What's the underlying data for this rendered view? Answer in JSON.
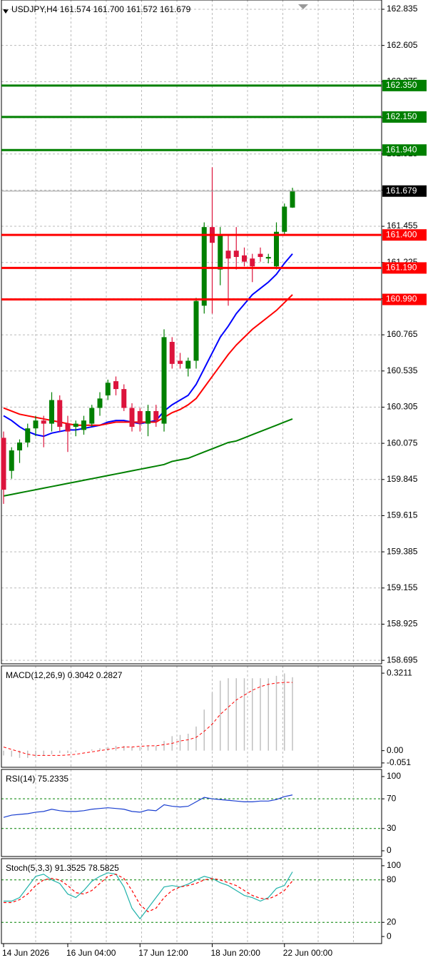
{
  "chart_data": [
    {
      "type": "candlestick",
      "title": "USDJPY,H4  161.574 161.700 161.572 161.679",
      "categories": [
        "14 Jun 2026",
        null,
        null,
        null,
        null,
        null,
        null,
        null,
        "16 Jun 04:00",
        null,
        null,
        null,
        null,
        null,
        null,
        null,
        null,
        "17 Jun 12:00",
        null,
        null,
        null,
        null,
        null,
        null,
        null,
        null,
        "18 Jun 20:00",
        null,
        null,
        null,
        null,
        null,
        null,
        null,
        null,
        "22 Jun 00:00",
        null
      ],
      "open": [
        160.11,
        159.9,
        160.03,
        160.08,
        160.17,
        160.22,
        160.2,
        160.35,
        160.2,
        160.18,
        160.16,
        160.2,
        160.3,
        160.38,
        160.47,
        160.42,
        160.3,
        160.28,
        160.2,
        160.28,
        160.2,
        160.72,
        160.6,
        160.55,
        160.6,
        160.95,
        161.45,
        161.18,
        161.3,
        161.3,
        161.27,
        161.25,
        161.28,
        161.25,
        161.2,
        161.42,
        161.574
      ],
      "high": [
        160.15,
        160.05,
        160.1,
        160.2,
        160.25,
        160.25,
        160.4,
        160.38,
        160.25,
        160.22,
        160.25,
        160.32,
        160.4,
        160.48,
        160.5,
        160.45,
        160.33,
        160.3,
        160.32,
        160.32,
        160.8,
        160.75,
        160.65,
        160.62,
        161.0,
        161.48,
        161.83,
        161.45,
        161.4,
        161.45,
        161.32,
        161.28,
        161.32,
        161.28,
        161.48,
        161.6,
        161.7
      ],
      "low": [
        159.69,
        159.85,
        159.95,
        160.05,
        160.12,
        160.05,
        160.15,
        160.15,
        160.02,
        160.12,
        160.13,
        160.18,
        160.25,
        160.35,
        160.38,
        160.28,
        160.15,
        160.15,
        160.12,
        160.18,
        160.15,
        160.55,
        160.55,
        160.5,
        160.55,
        160.9,
        160.9,
        161.08,
        160.95,
        161.18,
        161.2,
        161.1,
        161.23,
        161.22,
        161.18,
        161.4,
        161.572
      ],
      "close": [
        159.78,
        160.03,
        160.08,
        160.17,
        160.22,
        160.2,
        160.35,
        160.18,
        160.15,
        160.2,
        160.22,
        160.3,
        160.36,
        160.46,
        160.42,
        160.3,
        160.18,
        160.2,
        160.28,
        160.22,
        160.75,
        160.58,
        160.58,
        160.6,
        160.98,
        161.45,
        161.35,
        161.4,
        161.25,
        161.26,
        161.23,
        161.2,
        161.26,
        161.26,
        161.42,
        161.58,
        161.679
      ],
      "up_color": "#008000",
      "down_color": "#dc143c",
      "lines": [
        {
          "color": "#0000ff",
          "values": [
            160.25,
            160.22,
            160.18,
            160.15,
            160.13,
            160.12,
            160.14,
            160.15,
            160.16,
            160.16,
            160.17,
            160.18,
            160.19,
            160.21,
            160.22,
            160.22,
            160.21,
            160.2,
            160.21,
            160.22,
            160.28,
            160.32,
            160.35,
            160.38,
            160.45,
            160.55,
            160.65,
            160.75,
            160.82,
            160.9,
            160.96,
            161.02,
            161.06,
            161.1,
            161.15,
            161.22,
            161.28
          ]
        },
        {
          "color": "#ff0000",
          "values": [
            160.3,
            160.28,
            160.26,
            160.25,
            160.24,
            160.23,
            160.22,
            160.21,
            160.2,
            160.19,
            160.19,
            160.19,
            160.19,
            160.2,
            160.21,
            160.21,
            160.21,
            160.21,
            160.21,
            160.21,
            160.24,
            160.27,
            160.29,
            160.32,
            160.36,
            160.43,
            160.5,
            160.57,
            160.64,
            160.7,
            160.75,
            160.8,
            160.84,
            160.88,
            160.92,
            160.97,
            161.02
          ]
        },
        {
          "color": "#008000",
          "values": [
            159.74,
            159.75,
            159.76,
            159.77,
            159.78,
            159.79,
            159.8,
            159.81,
            159.82,
            159.83,
            159.84,
            159.85,
            159.86,
            159.87,
            159.88,
            159.89,
            159.9,
            159.91,
            159.92,
            159.93,
            159.94,
            159.96,
            159.97,
            159.98,
            160.0,
            160.02,
            160.04,
            160.06,
            160.08,
            160.09,
            160.11,
            160.13,
            160.15,
            160.17,
            160.19,
            160.21,
            160.23
          ]
        }
      ],
      "levels": [
        {
          "value": 162.35,
          "label": "162.350",
          "color": "#008000"
        },
        {
          "value": 162.15,
          "label": "162.150",
          "color": "#008000"
        },
        {
          "value": 161.94,
          "label": "161.940",
          "color": "#008000"
        },
        {
          "value": 161.4,
          "label": "161.400",
          "color": "#ff0000"
        },
        {
          "value": 161.19,
          "label": "161.190",
          "color": "#ff0000"
        },
        {
          "value": 160.99,
          "label": "160.990",
          "color": "#ff0000"
        }
      ],
      "last_price": 161.679,
      "ylim": [
        158.673,
        162.894
      ],
      "yticks": [
        162.835,
        162.605,
        162.375,
        162.145,
        161.915,
        161.685,
        161.455,
        161.225,
        160.995,
        160.765,
        160.535,
        160.305,
        160.075,
        159.845,
        159.615,
        159.385,
        159.155,
        158.925,
        158.695
      ],
      "grid": true
    },
    {
      "type": "bar",
      "title": "MACD(12,26,9) 0.3042 0.2827",
      "color": "#c0c0c0",
      "values": [
        -0.02,
        -0.025,
        -0.03,
        -0.03,
        -0.025,
        -0.02,
        -0.015,
        -0.01,
        -0.01,
        -0.005,
        0.0,
        0.005,
        0.01,
        0.015,
        0.02,
        0.02,
        0.015,
        0.015,
        0.02,
        0.02,
        0.04,
        0.06,
        0.065,
        0.07,
        0.1,
        0.17,
        0.24,
        0.29,
        0.3,
        0.3,
        0.3,
        0.3,
        0.3,
        0.3,
        0.31,
        0.32,
        0.3042
      ],
      "signal": [
        0.015,
        0.005,
        -0.005,
        -0.015,
        -0.02,
        -0.02,
        -0.02,
        -0.02,
        -0.018,
        -0.015,
        -0.01,
        -0.005,
        0.0,
        0.005,
        0.01,
        0.015,
        0.015,
        0.018,
        0.02,
        0.02,
        0.025,
        0.03,
        0.04,
        0.045,
        0.055,
        0.08,
        0.11,
        0.15,
        0.18,
        0.21,
        0.23,
        0.25,
        0.265,
        0.275,
        0.28,
        0.283,
        0.2827
      ],
      "signal_color": "#ff0000",
      "ylim": [
        -0.069,
        0.351
      ],
      "yticks": [
        0.3211,
        {
          "value": 0,
          "label": "0.00"
        },
        -0.051
      ],
      "grid": false
    },
    {
      "type": "line",
      "title": "RSI(14) 75.2335",
      "series": [
        {
          "color": "#1a3fd0",
          "dash": false,
          "values": [
            45,
            48,
            49,
            50,
            52,
            53,
            56,
            54,
            53,
            53,
            54,
            56,
            57,
            58,
            57,
            56,
            53,
            52,
            55,
            54,
            62,
            60,
            59,
            60,
            66,
            72,
            70,
            69,
            68,
            67,
            66,
            66,
            67,
            67,
            69,
            73,
            75.2335
          ]
        }
      ],
      "ylim": [
        -7.7,
        109.6
      ],
      "yticks": [
        100,
        70,
        30,
        0
      ],
      "grid": true,
      "grid_color": "#008000"
    },
    {
      "type": "line",
      "title": "Stoch(5,3,3) 91.3525 78.5825",
      "series": [
        {
          "color": "#20b2aa",
          "dash": false,
          "values": [
            50,
            50,
            55,
            70,
            85,
            88,
            80,
            75,
            60,
            55,
            65,
            78,
            85,
            90,
            88,
            70,
            40,
            25,
            40,
            55,
            70,
            72,
            70,
            74,
            80,
            85,
            82,
            76,
            72,
            65,
            58,
            55,
            50,
            55,
            68,
            72,
            91.3525
          ]
        },
        {
          "color": "#ff0000",
          "dash": true,
          "values": [
            48,
            48,
            52,
            60,
            72,
            80,
            82,
            80,
            72,
            62,
            60,
            65,
            75,
            85,
            88,
            82,
            65,
            45,
            35,
            40,
            55,
            65,
            70,
            72,
            75,
            80,
            82,
            80,
            76,
            72,
            65,
            58,
            54,
            53,
            58,
            65,
            78.5825
          ]
        }
      ],
      "ylim": [
        -10,
        110
      ],
      "yticks": [
        100,
        80,
        20,
        0
      ],
      "grid": true,
      "grid_color": "#008000"
    }
  ]
}
